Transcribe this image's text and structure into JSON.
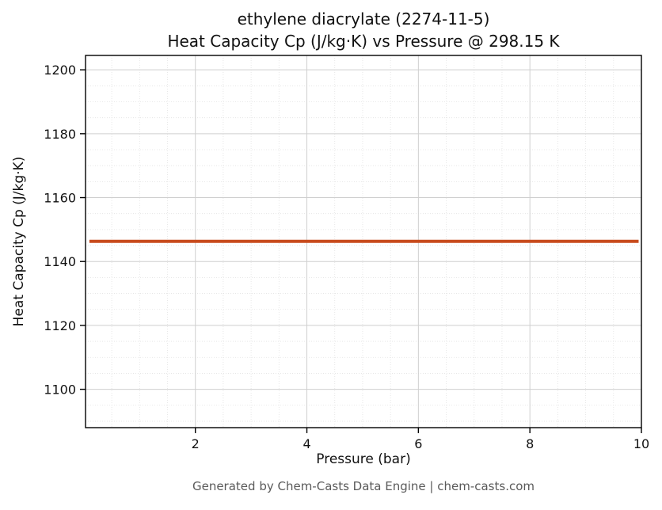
{
  "chart_data": {
    "type": "line",
    "title": "ethylene diacrylate (2274-11-5)",
    "subtitle": "Heat Capacity Cp (J/kg·K) vs Pressure @ 298.15 K",
    "xlabel": "Pressure (bar)",
    "ylabel": "Heat Capacity Cp (J/kg·K)",
    "xlim": [
      0.03,
      10
    ],
    "ylim": [
      1088,
      1204.5
    ],
    "xticks": [
      2,
      4,
      6,
      8,
      10
    ],
    "yticks": [
      1100,
      1120,
      1140,
      1160,
      1180,
      1200
    ],
    "grid": true,
    "legend_position": "none",
    "series": [
      {
        "name": "Heat Capacity Cp",
        "x": [
          0.1,
          9.95
        ],
        "y": [
          1146.3,
          1146.3
        ],
        "color": "#c84b1d",
        "linewidth": 4
      }
    ]
  },
  "footer": {
    "text": "Generated by Chem-Casts Data Engine | chem-casts.com"
  },
  "colors": {
    "axis": "#000000",
    "grid_major": "#cfcfcf",
    "grid_minor": "#e2e2e2",
    "tick_label": "#111111"
  }
}
